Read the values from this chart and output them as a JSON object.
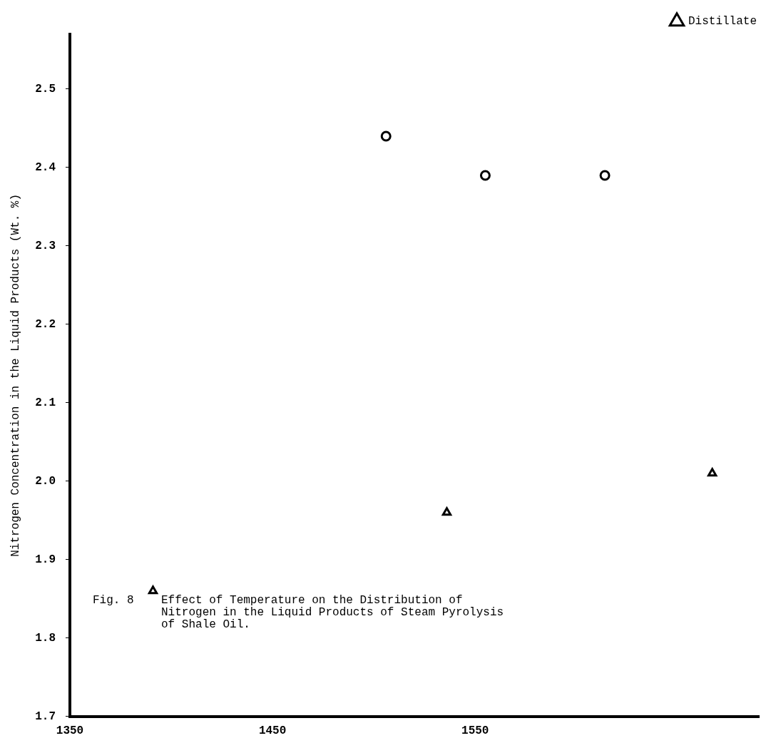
{
  "chart_data": {
    "type": "scatter",
    "ylabel": "Nitrogen Concentration in the Liquid Products (Wt. %)",
    "xlim": [
      1350,
      1690
    ],
    "xticks": [
      1350,
      1450,
      1550
    ],
    "ylim": [
      1.7,
      2.57
    ],
    "yticks": [
      1.7,
      1.8,
      1.9,
      {
        "value": 2,
        "label": "2.0"
      },
      2.1,
      2.2,
      2.3,
      2.4,
      2.5
    ],
    "series": [
      {
        "marker": "circle",
        "color": "#000000",
        "x": [
          1506,
          1555,
          1614
        ],
        "values": [
          2.44,
          2.39,
          2.39
        ]
      },
      {
        "name": "Distillate",
        "marker": "triangle",
        "color": "#000000",
        "x": [
          1391,
          1536,
          1667
        ],
        "values": [
          1.86,
          1.96,
          2.01
        ]
      }
    ],
    "grid": false,
    "legend": "top right",
    "line_style": "none",
    "annotations": [
      "Fig. 8    Effect of Temperature on the Distribution of\n          Nitrogen in the Liquid Products of Steam Pyrolysis\n          of Shale Oil."
    ]
  }
}
